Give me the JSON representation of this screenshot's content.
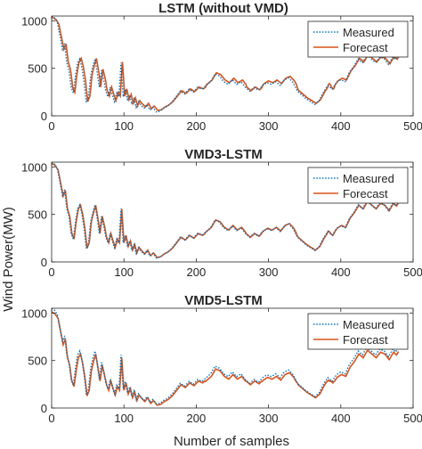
{
  "figure": {
    "ylabel": "Wind Power(MW)",
    "xlabel": "Number of samples"
  },
  "chart_data": [
    {
      "type": "line",
      "title": "LSTM (without VMD)",
      "xlim": [
        0,
        500
      ],
      "ylim": [
        0,
        1050
      ],
      "xticks": [
        "0",
        "100",
        "200",
        "300",
        "400",
        "500"
      ],
      "yticks": [
        "0",
        "500",
        "1000"
      ],
      "legend": "top-right",
      "series": [
        {
          "name": "Measured",
          "color": "#0072BD",
          "style": "dotted",
          "offset_shift": 0,
          "offset_bias": 0,
          "offset_scale": 1
        },
        {
          "name": "Forecast",
          "color": "#D95319",
          "style": "solid",
          "offset_shift": 2,
          "offset_bias": 35,
          "offset_scale": 0.95
        }
      ]
    },
    {
      "type": "line",
      "title": "VMD3-LSTM",
      "xlim": [
        0,
        500
      ],
      "ylim": [
        0,
        1050
      ],
      "xticks": [
        "0",
        "100",
        "200",
        "300",
        "400",
        "500"
      ],
      "yticks": [
        "0",
        "500",
        "1000"
      ],
      "legend": "top-right",
      "series": [
        {
          "name": "Measured",
          "color": "#0072BD",
          "style": "dotted",
          "offset_shift": 0,
          "offset_bias": 0,
          "offset_scale": 1
        },
        {
          "name": "Forecast",
          "color": "#D95319",
          "style": "solid",
          "offset_shift": 1,
          "offset_bias": 15,
          "offset_scale": 0.97
        }
      ]
    },
    {
      "type": "line",
      "title": "VMD5-LSTM",
      "xlim": [
        0,
        500
      ],
      "ylim": [
        0,
        1050
      ],
      "xticks": [
        "0",
        "100",
        "200",
        "300",
        "400",
        "500"
      ],
      "yticks": [
        "0",
        "500",
        "1000"
      ],
      "legend": "top-right",
      "series": [
        {
          "name": "Measured",
          "color": "#0072BD",
          "style": "dotted",
          "offset_shift": 0,
          "offset_bias": 0,
          "offset_scale": 1
        },
        {
          "name": "Forecast",
          "color": "#D95319",
          "style": "solid",
          "offset_shift": 1,
          "offset_bias": -20,
          "offset_scale": 0.98
        }
      ]
    }
  ],
  "measured_profile": [
    [
      0,
      1050
    ],
    [
      4,
      1030
    ],
    [
      8,
      980
    ],
    [
      12,
      820
    ],
    [
      15,
      700
    ],
    [
      18,
      760
    ],
    [
      21,
      560
    ],
    [
      24,
      480
    ],
    [
      27,
      300
    ],
    [
      30,
      240
    ],
    [
      33,
      420
    ],
    [
      36,
      560
    ],
    [
      39,
      600
    ],
    [
      42,
      500
    ],
    [
      45,
      350
    ],
    [
      48,
      140
    ],
    [
      51,
      200
    ],
    [
      54,
      420
    ],
    [
      57,
      520
    ],
    [
      60,
      600
    ],
    [
      63,
      460
    ],
    [
      66,
      300
    ],
    [
      69,
      480
    ],
    [
      72,
      380
    ],
    [
      75,
      260
    ],
    [
      78,
      200
    ],
    [
      81,
      300
    ],
    [
      84,
      220
    ],
    [
      87,
      150
    ],
    [
      90,
      240
    ],
    [
      93,
      200
    ],
    [
      96,
      560
    ],
    [
      99,
      200
    ],
    [
      102,
      280
    ],
    [
      105,
      160
    ],
    [
      108,
      220
    ],
    [
      111,
      120
    ],
    [
      114,
      180
    ],
    [
      117,
      90
    ],
    [
      120,
      150
    ],
    [
      124,
      110
    ],
    [
      128,
      80
    ],
    [
      132,
      120
    ],
    [
      136,
      60
    ],
    [
      140,
      90
    ],
    [
      145,
      40
    ],
    [
      150,
      50
    ],
    [
      155,
      80
    ],
    [
      160,
      100
    ],
    [
      166,
      140
    ],
    [
      172,
      200
    ],
    [
      178,
      260
    ],
    [
      184,
      230
    ],
    [
      190,
      280
    ],
    [
      196,
      250
    ],
    [
      202,
      300
    ],
    [
      208,
      280
    ],
    [
      214,
      320
    ],
    [
      220,
      360
    ],
    [
      226,
      440
    ],
    [
      232,
      420
    ],
    [
      238,
      360
    ],
    [
      244,
      330
    ],
    [
      250,
      380
    ],
    [
      256,
      330
    ],
    [
      262,
      360
    ],
    [
      268,
      300
    ],
    [
      274,
      260
    ],
    [
      280,
      300
    ],
    [
      286,
      270
    ],
    [
      292,
      320
    ],
    [
      298,
      350
    ],
    [
      304,
      330
    ],
    [
      310,
      360
    ],
    [
      316,
      320
    ],
    [
      322,
      380
    ],
    [
      328,
      400
    ],
    [
      334,
      350
    ],
    [
      340,
      260
    ],
    [
      346,
      220
    ],
    [
      352,
      180
    ],
    [
      358,
      150
    ],
    [
      364,
      120
    ],
    [
      370,
      160
    ],
    [
      376,
      250
    ],
    [
      382,
      320
    ],
    [
      388,
      280
    ],
    [
      394,
      350
    ],
    [
      400,
      380
    ],
    [
      406,
      360
    ],
    [
      412,
      460
    ],
    [
      418,
      520
    ],
    [
      424,
      600
    ],
    [
      430,
      560
    ],
    [
      436,
      640
    ],
    [
      442,
      600
    ],
    [
      448,
      560
    ],
    [
      454,
      620
    ],
    [
      460,
      600
    ],
    [
      466,
      540
    ],
    [
      472,
      620
    ],
    [
      476,
      590
    ],
    [
      480,
      640
    ]
  ]
}
